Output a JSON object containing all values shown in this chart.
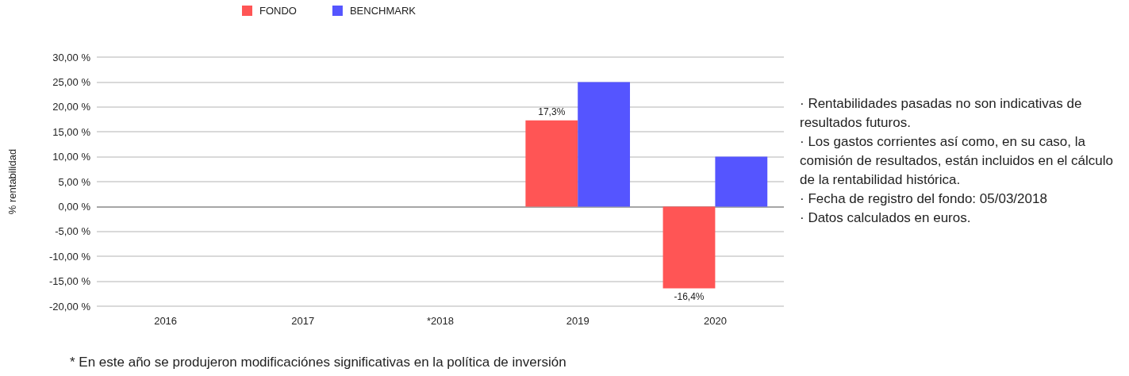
{
  "chart_data": {
    "type": "bar",
    "ylabel": "% rentabilidad",
    "categories": [
      "2016",
      "2017",
      "*2018",
      "2019",
      "2020"
    ],
    "series": [
      {
        "name": "FONDO",
        "color": "#ff5555",
        "values": [
          null,
          null,
          null,
          17.3,
          -16.4
        ],
        "value_labels": [
          null,
          null,
          null,
          "17,3%",
          "-16,4%"
        ]
      },
      {
        "name": "BENCHMARK",
        "color": "#5555ff",
        "values": [
          null,
          null,
          null,
          25.0,
          10.0
        ]
      }
    ],
    "ylim": [
      -20,
      30
    ],
    "yticks": [
      {
        "value": -20,
        "label": "-20,00 %"
      },
      {
        "value": -15,
        "label": "-15,00 %"
      },
      {
        "value": -10,
        "label": "-10,00 %"
      },
      {
        "value": -5,
        "label": "-5,00 %"
      },
      {
        "value": 0,
        "label": "0,00 %"
      },
      {
        "value": 5,
        "label": "5,00 %"
      },
      {
        "value": 10,
        "label": "10,00 %"
      },
      {
        "value": 15,
        "label": "15,00 %"
      },
      {
        "value": 20,
        "label": "20,00 %"
      },
      {
        "value": 25,
        "label": "25,00 %"
      },
      {
        "value": 30,
        "label": "30,00 %"
      }
    ],
    "grid": "y",
    "legend": "top",
    "annotations": [
      "· Rentabilidades pasadas no son indicativas de resultados futuros.",
      "· Los gastos corrientes así como, en su caso, la comisión de resultados, están incluidos en el cálculo de la rentabilidad histórica.",
      "· Fecha de registro del fondo: 05/03/2018",
      "· Datos calculados en euros.",
      "* En este año se produjeron modificaciónes significativas en la política de inversión"
    ]
  }
}
